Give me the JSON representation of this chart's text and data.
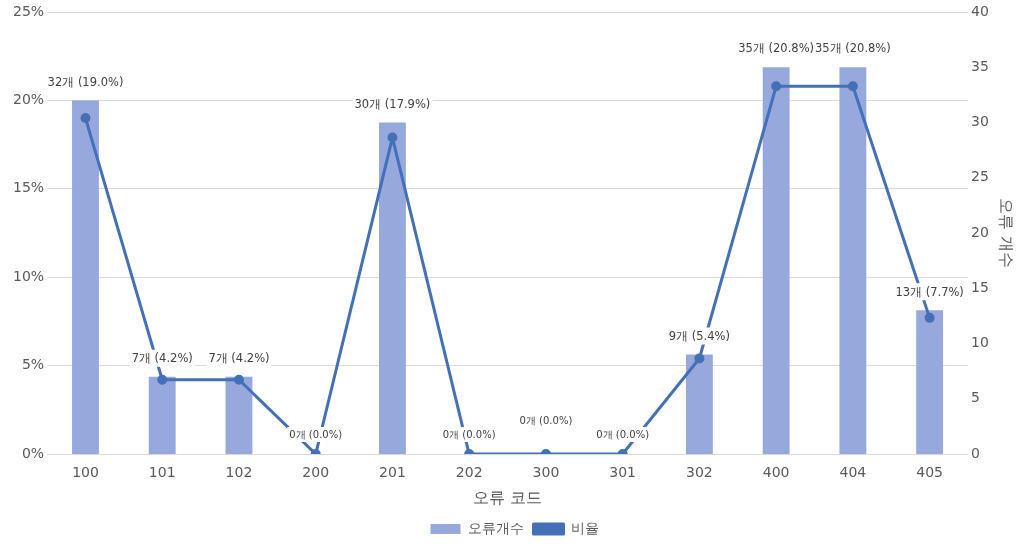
{
  "chart_data": {
    "type": "bar",
    "categories": [
      "100",
      "101",
      "102",
      "200",
      "201",
      "202",
      "300",
      "301",
      "302",
      "400",
      "404",
      "405"
    ],
    "series": [
      {
        "name": "오류개수",
        "axis": "y2",
        "color": "#97a9dc",
        "values": [
          32,
          7,
          7,
          0,
          30,
          0,
          0,
          0,
          9,
          35,
          35,
          13
        ],
        "value_labels": [
          "32개 (19.0%)",
          "7개 (4.2%)",
          "7개 (4.2%)",
          "0개 (0.0%)",
          "30개 (17.9%)",
          "0개 (0.0%)",
          "0개 (0.0%)",
          "0개 (0.0%)",
          "9개 (5.4%)",
          "35개 (20.8%)",
          "35개 (20.8%)",
          "13개 (7.7%)"
        ]
      },
      {
        "name": "비율",
        "type": "line",
        "color": "#4470b8",
        "marker": "circle",
        "values": [
          19.0,
          4.2,
          4.2,
          0.0,
          17.9,
          0.0,
          0.0,
          0.0,
          5.4,
          20.8,
          20.8,
          7.7
        ]
      }
    ],
    "xlabel": "오류 코드",
    "y2label": "오류 개수",
    "ylim": [
      0,
      25
    ],
    "yticks": [
      {
        "value": 0,
        "label": "0%"
      },
      {
        "value": 5,
        "label": "5%"
      },
      {
        "value": 10,
        "label": "10%"
      },
      {
        "value": 15,
        "label": "15%"
      },
      {
        "value": 20,
        "label": "20%"
      },
      {
        "value": 25,
        "label": "25%"
      }
    ],
    "y2lim": [
      0,
      40
    ],
    "y2ticks": [
      0,
      5,
      10,
      15,
      20,
      25,
      30,
      35,
      40
    ],
    "grid": "y",
    "legend": "bottom"
  }
}
